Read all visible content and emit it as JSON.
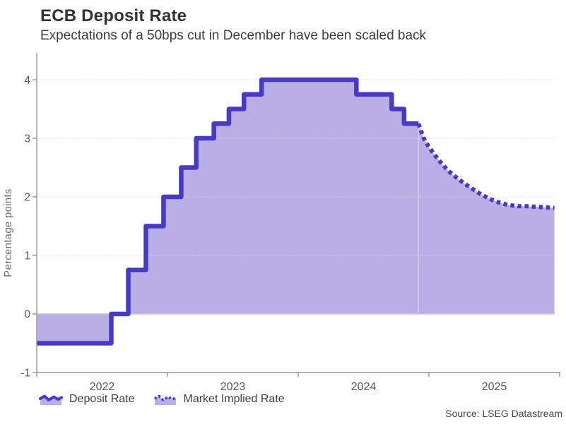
{
  "header": {
    "title": "ECB Deposit Rate",
    "subtitle": "Expectations of a 50bps cut in December have been scaled back"
  },
  "legend": {
    "items": [
      {
        "label": "Deposit Rate",
        "style": "solid-line-area"
      },
      {
        "label": "Market Implied Rate",
        "style": "dotted-line-area"
      }
    ]
  },
  "footer": {
    "source": "Source: LSEG Datastream"
  },
  "colors": {
    "accent_line": "#4839c6",
    "area_fill": "#b9afe6",
    "grid": "#dedede",
    "zero_line": "#c9c9c9",
    "axis": "#969696",
    "tick_text": "#595959",
    "axis_title_text": "#666666"
  },
  "chart_data": {
    "type": "area",
    "title": "ECB Deposit Rate",
    "subtitle": "Expectations of a 50bps cut in December have been scaled back",
    "xlabel": "",
    "ylabel": "Percentage points",
    "ylim": [
      -1,
      4
    ],
    "yticks": [
      -1,
      0,
      1,
      2,
      3,
      4
    ],
    "x_range_years": [
      2022.0,
      2025.96
    ],
    "xtick_boundary_years": [
      2022,
      2023,
      2024,
      2025,
      2026
    ],
    "xtick_labels": [
      "2022",
      "2023",
      "2024",
      "2025"
    ],
    "grid": "horizontal-dotted",
    "legend_position": "bottom-left",
    "series": [
      {
        "name": "Deposit Rate",
        "style": "solid-step",
        "points": [
          [
            2022.0,
            -0.5
          ],
          [
            2022.57,
            0.0
          ],
          [
            2022.7,
            0.75
          ],
          [
            2022.835,
            1.5
          ],
          [
            2022.97,
            2.0
          ],
          [
            2023.105,
            2.5
          ],
          [
            2023.22,
            3.0
          ],
          [
            2023.355,
            3.25
          ],
          [
            2023.47,
            3.5
          ],
          [
            2023.585,
            3.75
          ],
          [
            2023.72,
            4.0
          ],
          [
            2024.445,
            3.75
          ],
          [
            2024.715,
            3.5
          ],
          [
            2024.81,
            3.25
          ],
          [
            2024.92,
            3.25
          ]
        ]
      },
      {
        "name": "Market Implied Rate",
        "style": "dotted-curve",
        "points": [
          [
            2024.92,
            3.25
          ],
          [
            2024.96,
            3.0
          ],
          [
            2025.0,
            2.85
          ],
          [
            2025.05,
            2.7
          ],
          [
            2025.1,
            2.56
          ],
          [
            2025.15,
            2.44
          ],
          [
            2025.21,
            2.33
          ],
          [
            2025.27,
            2.23
          ],
          [
            2025.33,
            2.14
          ],
          [
            2025.4,
            2.04
          ],
          [
            2025.47,
            1.96
          ],
          [
            2025.54,
            1.9
          ],
          [
            2025.61,
            1.86
          ],
          [
            2025.68,
            1.84
          ],
          [
            2025.75,
            1.84
          ],
          [
            2025.82,
            1.83
          ],
          [
            2025.89,
            1.82
          ],
          [
            2025.96,
            1.81
          ]
        ]
      }
    ]
  }
}
